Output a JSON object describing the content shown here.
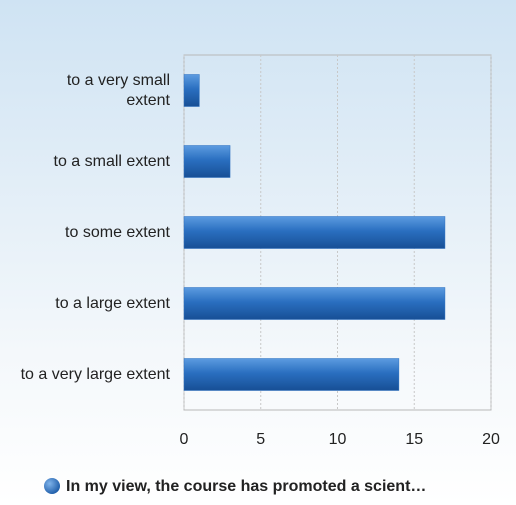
{
  "chart_data": {
    "type": "bar",
    "orientation": "horizontal",
    "categories": [
      "to a very small extent",
      "to a small extent",
      "to some extent",
      "to a large extent",
      "to a very large extent"
    ],
    "series": [
      {
        "name": "In my view, the course has promoted a scient…",
        "color": "#2a6fc0",
        "values": [
          1,
          3,
          17,
          17,
          14
        ]
      }
    ],
    "xlim": [
      0,
      20
    ],
    "xticks": [
      0,
      5,
      10,
      15,
      20
    ],
    "grid": true,
    "legend": "bottom"
  }
}
